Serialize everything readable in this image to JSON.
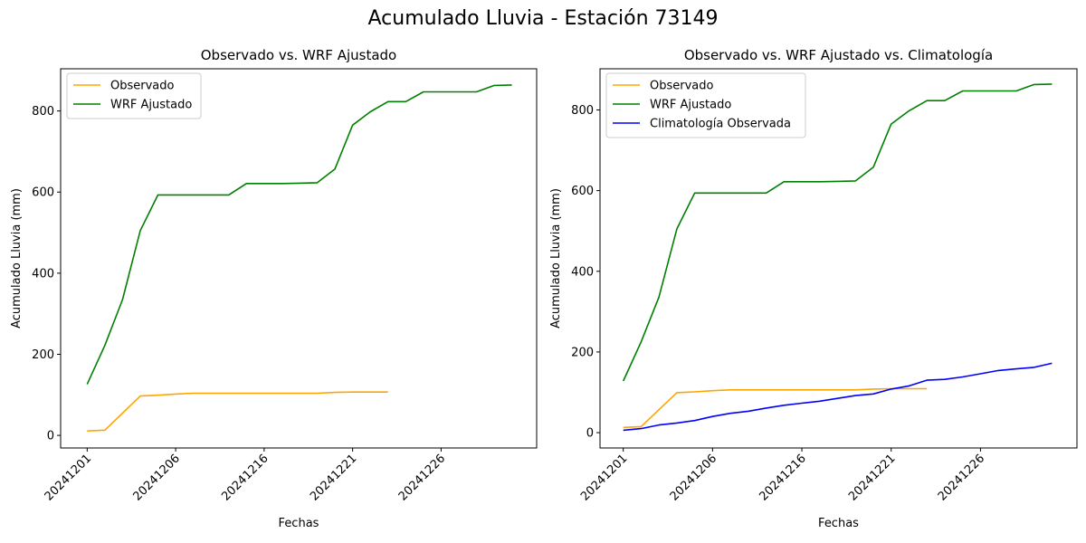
{
  "figure": {
    "suptitle": "Acumulado Lluvia - Estación 73149"
  },
  "chart_data": [
    {
      "type": "line",
      "title": "Observado vs. WRF Ajustado",
      "xlabel": "Fechas",
      "ylabel": "Acumulado Lluvia (mm)",
      "x_tick_labels": [
        "20241201",
        "20241206",
        "20241216",
        "20241221",
        "20241226"
      ],
      "y_ticks": [
        0,
        200,
        400,
        600,
        800
      ],
      "ylim": [
        -31,
        904
      ],
      "xlim": [
        -1.5,
        25.4
      ],
      "grid": false,
      "legend_position": "top-left",
      "series": [
        {
          "name": "Observado",
          "color": "#ffa500",
          "x": [
            0,
            1,
            2,
            3,
            4,
            5,
            6,
            7,
            8,
            9,
            10,
            11,
            12,
            13,
            14,
            15,
            16,
            17
          ],
          "values": [
            11,
            13,
            55,
            97,
            99,
            102,
            104,
            104,
            104,
            104,
            104,
            104,
            104,
            104,
            106,
            107,
            107,
            107
          ]
        },
        {
          "name": "WRF Ajustado",
          "color": "#008000",
          "x": [
            0,
            1,
            2,
            3,
            4,
            5,
            6,
            7,
            8,
            9,
            10,
            11,
            12,
            13,
            14,
            15,
            16,
            17,
            18,
            19,
            20,
            21,
            22,
            23,
            24
          ],
          "values": [
            126,
            222,
            335,
            505,
            593,
            593,
            593,
            593,
            593,
            621,
            621,
            621,
            622,
            623,
            657,
            765,
            798,
            823,
            823,
            847,
            847,
            847,
            847,
            863,
            864
          ]
        }
      ]
    },
    {
      "type": "line",
      "title": "Observado vs. WRF Ajustado vs. Climatología",
      "xlabel": "Fechas",
      "ylabel": "Acumulado Lluvia (mm)",
      "x_tick_labels": [
        "20241201",
        "20241206",
        "20241216",
        "20241221",
        "20241226"
      ],
      "y_ticks": [
        0,
        200,
        400,
        600,
        800
      ],
      "ylim": [
        -38,
        902
      ],
      "xlim": [
        -1.3,
        25.4
      ],
      "grid": false,
      "legend_position": "top-left",
      "series": [
        {
          "name": "Observado",
          "color": "#ffa500",
          "x": [
            0,
            1,
            2,
            3,
            4,
            5,
            6,
            7,
            8,
            9,
            10,
            11,
            12,
            13,
            14,
            15,
            16,
            17
          ],
          "values": [
            13,
            15,
            57,
            99,
            101,
            104,
            106,
            106,
            106,
            106,
            106,
            106,
            106,
            106,
            108,
            109,
            109,
            109
          ]
        },
        {
          "name": "WRF Ajustado",
          "color": "#008000",
          "x": [
            0,
            1,
            2,
            3,
            4,
            5,
            6,
            7,
            8,
            9,
            10,
            11,
            12,
            13,
            14,
            15,
            16,
            17,
            18,
            19,
            20,
            21,
            22,
            23,
            24
          ],
          "values": [
            128,
            225,
            336,
            505,
            594,
            594,
            594,
            594,
            594,
            622,
            622,
            622,
            623,
            624,
            658,
            765,
            798,
            823,
            823,
            847,
            847,
            847,
            847,
            863,
            864
          ]
        },
        {
          "name": "Climatología Observada",
          "color": "#0000ff",
          "x": [
            0,
            1,
            2,
            3,
            4,
            5,
            6,
            7,
            8,
            9,
            10,
            11,
            12,
            13,
            14,
            15,
            16,
            17,
            18,
            19,
            20,
            21,
            22,
            23,
            24
          ],
          "values": [
            6,
            10,
            19,
            24,
            30,
            40,
            48,
            53,
            61,
            68,
            73,
            78,
            85,
            92,
            96,
            108,
            116,
            130,
            132,
            138,
            146,
            154,
            158,
            162,
            172
          ]
        }
      ]
    }
  ]
}
